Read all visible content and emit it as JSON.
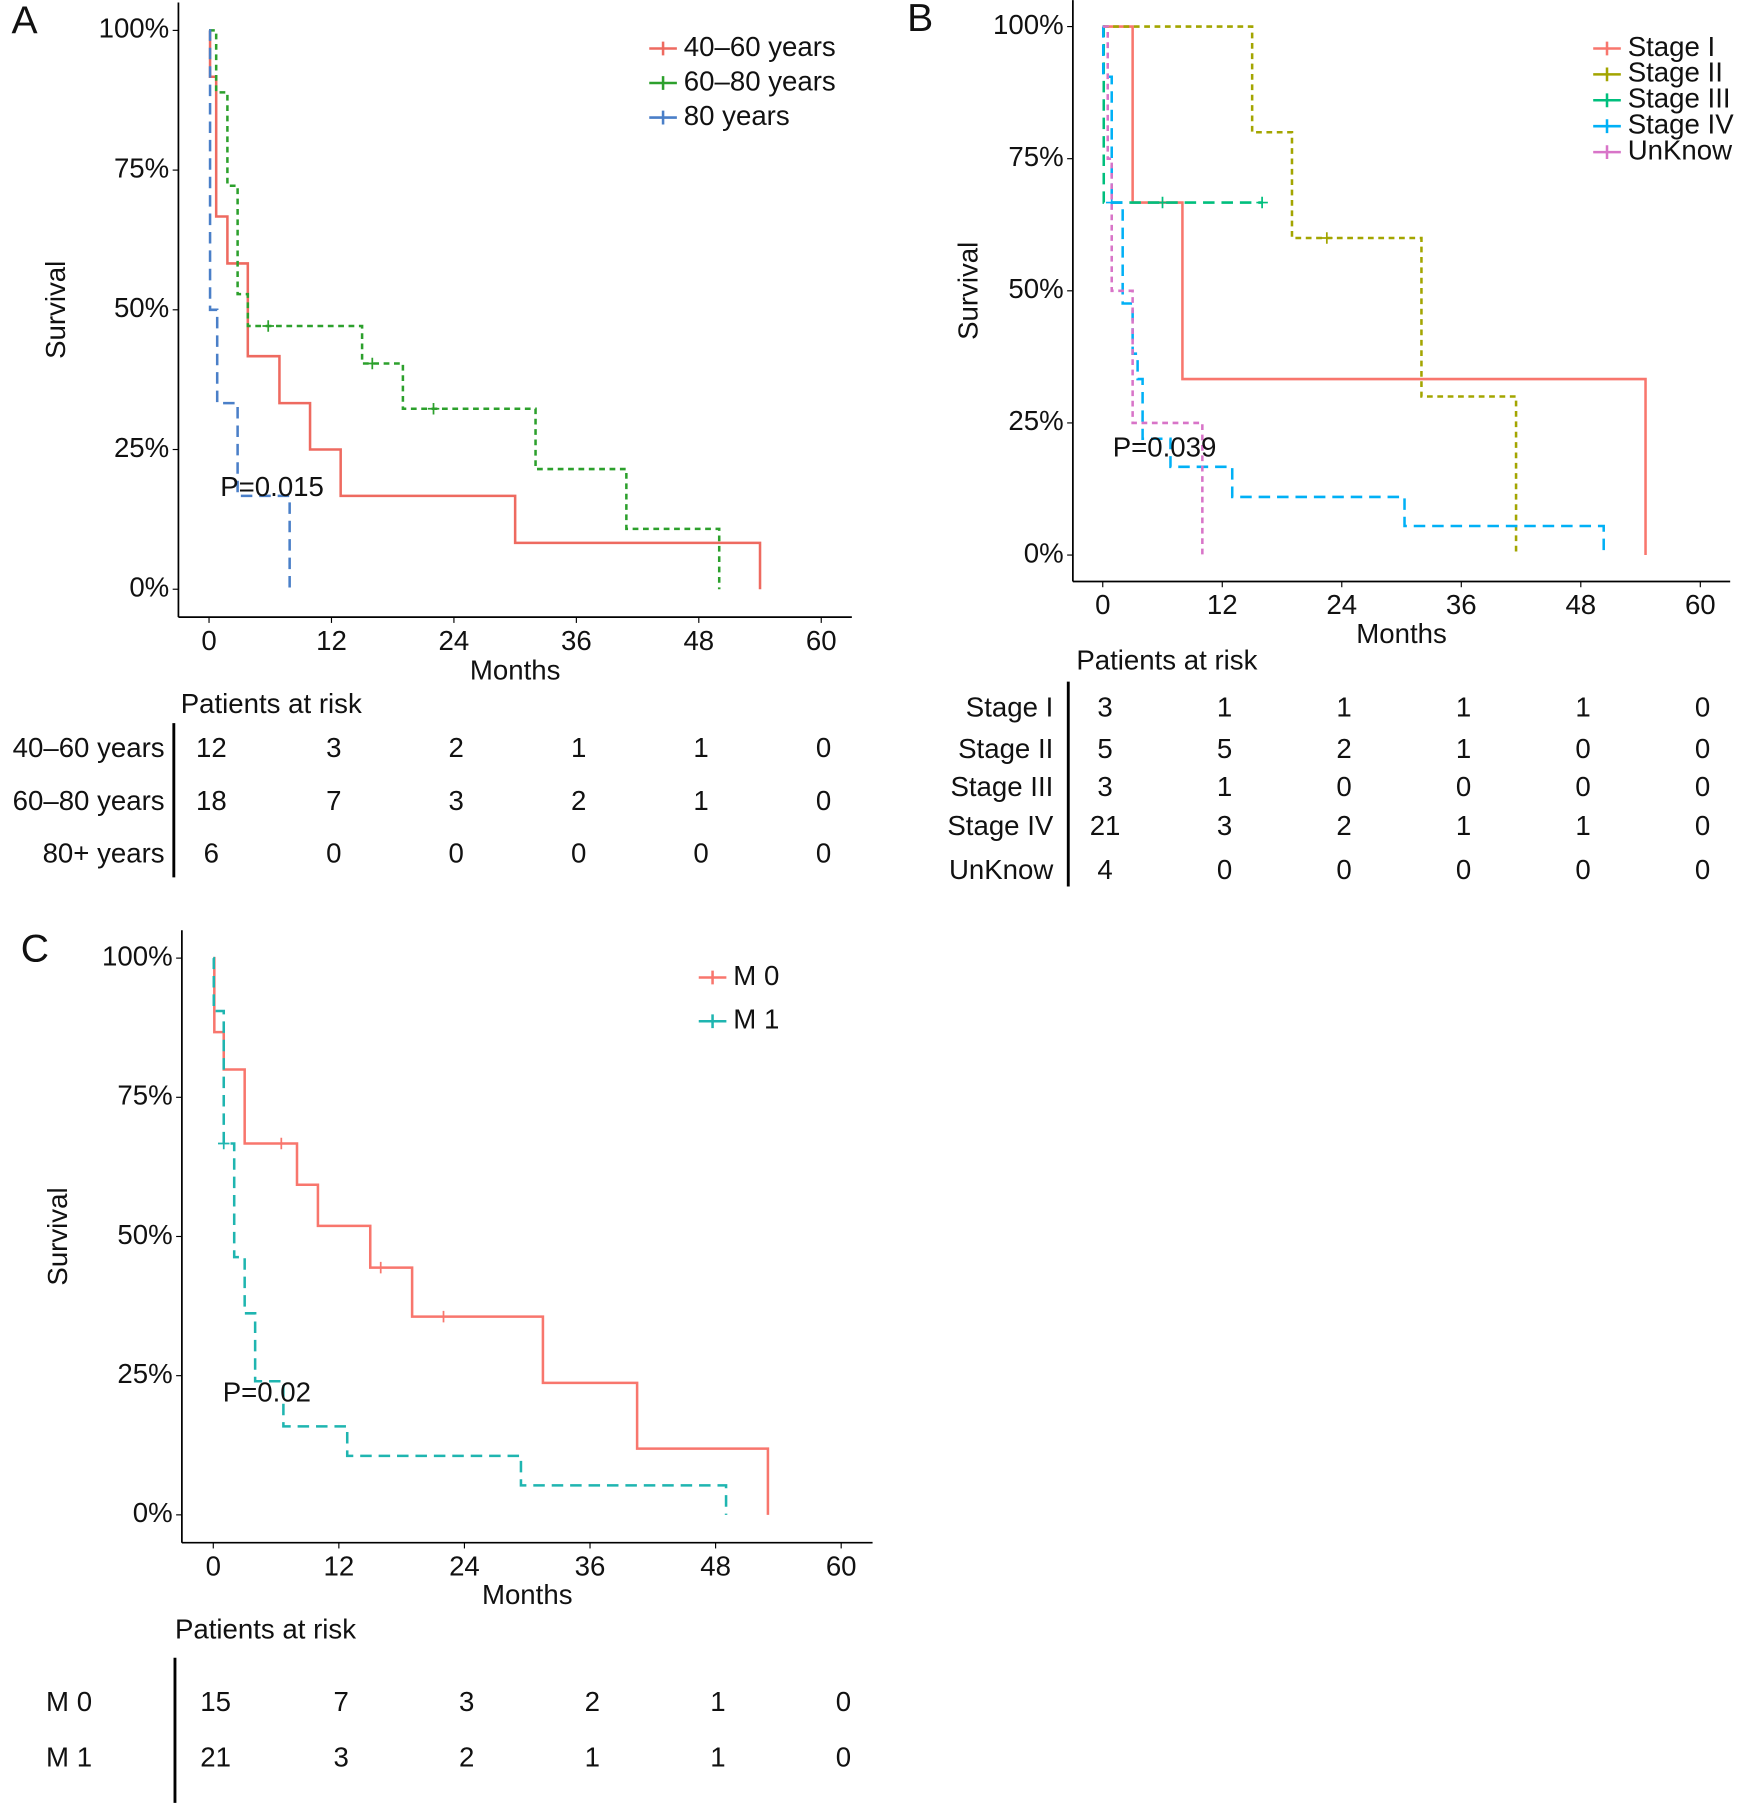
{
  "chart_data": [
    {
      "type": "line",
      "panel": "A",
      "y_label": "Survival",
      "x_label": "Months",
      "annotation": "P=0.015",
      "annotation_x": 1.1,
      "annotation_y": 18,
      "xlim": [
        -3,
        63
      ],
      "xticks": [
        0,
        12,
        24,
        36,
        48,
        60
      ],
      "ylim": [
        -5,
        105
      ],
      "yticks": [
        {
          "value": 0,
          "label": "0%"
        },
        {
          "value": 25,
          "label": "25%"
        },
        {
          "value": 50,
          "label": "50%"
        },
        {
          "value": 75,
          "label": "75%"
        },
        {
          "value": 100,
          "label": "100%"
        }
      ],
      "series": [
        {
          "name": "40–60 years",
          "color": "#ee6a60",
          "dash": "solid",
          "x": [
            0,
            0.1,
            0.7,
            1.8,
            3.8,
            6.9,
            9.9,
            12.9,
            30,
            54
          ],
          "values": [
            100,
            91.7,
            66.7,
            58.3,
            41.7,
            33.3,
            25,
            16.7,
            8.3,
            0
          ],
          "censored": []
        },
        {
          "name": "60–80 years",
          "color": "#2ca02c",
          "dash": "dotted",
          "x": [
            0,
            0.7,
            1.8,
            2.8,
            3.8,
            15,
            19,
            32,
            40.9,
            50
          ],
          "values": [
            100,
            88.9,
            72.2,
            52.8,
            47.1,
            40.4,
            32.3,
            21.5,
            10.8,
            0
          ],
          "censored": [
            5.8,
            16,
            22
          ]
        },
        {
          "name": "80 years",
          "color": "#4a7fc8",
          "dash": "dashed",
          "x": [
            0,
            0.1,
            0.8,
            2.8,
            7.9
          ],
          "values": [
            100,
            50,
            33.3,
            16.7,
            0
          ],
          "censored": []
        }
      ],
      "risk_table": {
        "title": "Patients at risk",
        "rows": [
          {
            "name": "40–60 years",
            "values": [
              12,
              3,
              2,
              1,
              1,
              0
            ]
          },
          {
            "name": "60–80 years",
            "values": [
              18,
              7,
              3,
              2,
              1,
              0
            ]
          },
          {
            "name": "80+ years",
            "values": [
              6,
              0,
              0,
              0,
              0,
              0
            ]
          }
        ]
      }
    },
    {
      "type": "line",
      "panel": "B",
      "y_label": "Survival",
      "x_label": "Months",
      "annotation": "P=0.039",
      "annotation_x": 1,
      "annotation_y": 20,
      "xlim": [
        -3,
        63
      ],
      "xticks": [
        0,
        12,
        24,
        36,
        48,
        60
      ],
      "ylim": [
        -5,
        105
      ],
      "yticks": [
        {
          "value": 0,
          "label": "0%"
        },
        {
          "value": 25,
          "label": "25%"
        },
        {
          "value": 50,
          "label": "50%"
        },
        {
          "value": 75,
          "label": "75%"
        },
        {
          "value": 100,
          "label": "100%"
        }
      ],
      "series": [
        {
          "name": "Stage I",
          "color": "#f8766d",
          "dash": "solid",
          "x": [
            0,
            3,
            8,
            54.5
          ],
          "values": [
            100,
            66.7,
            33.3,
            0
          ],
          "censored": []
        },
        {
          "name": "Stage II",
          "color": "#a3a500",
          "dash": "dotted",
          "x": [
            0,
            15,
            19,
            32,
            41.5
          ],
          "values": [
            100,
            80,
            60,
            30,
            0
          ],
          "censored": [
            22.5
          ]
        },
        {
          "name": "Stage III",
          "color": "#00bf7d",
          "dash": "dashed",
          "x": [
            0,
            0.1,
            16
          ],
          "values": [
            100,
            66.7,
            66.7
          ],
          "censored": [
            6,
            16
          ]
        },
        {
          "name": "Stage IV",
          "color": "#00b0f6",
          "dash": "dashed",
          "x": [
            0,
            0.05,
            0.9,
            2,
            3,
            3.5,
            4,
            6.8,
            13,
            30.3,
            50.3
          ],
          "values": [
            100,
            90.5,
            66.7,
            47.6,
            38.1,
            33.3,
            22,
            16.7,
            11,
            5.5,
            0
          ],
          "censored": [
            0.9
          ]
        },
        {
          "name": "UnKnow",
          "color": "#d874c8",
          "dash": "dotted",
          "x": [
            0,
            0.5,
            0.9,
            3,
            10
          ],
          "values": [
            100,
            75,
            50,
            25,
            0
          ],
          "censored": []
        }
      ],
      "risk_table": {
        "title": "Patients at risk",
        "rows": [
          {
            "name": "Stage I",
            "values": [
              3,
              1,
              1,
              1,
              1,
              0
            ]
          },
          {
            "name": "Stage II",
            "values": [
              5,
              5,
              2,
              1,
              0,
              0
            ]
          },
          {
            "name": "Stage III",
            "values": [
              3,
              1,
              0,
              0,
              0,
              0
            ]
          },
          {
            "name": "Stage IV",
            "values": [
              21,
              3,
              2,
              1,
              1,
              0
            ]
          },
          {
            "name": "UnKnow",
            "values": [
              4,
              0,
              0,
              0,
              0,
              0
            ]
          }
        ]
      }
    },
    {
      "type": "line",
      "panel": "C",
      "y_label": "Survival",
      "x_label": "Months",
      "annotation": "P=0.02",
      "annotation_x": 0.9,
      "annotation_y": 21.7,
      "xlim": [
        -3,
        63
      ],
      "xticks": [
        0,
        12,
        24,
        36,
        48,
        60
      ],
      "ylim": [
        -5,
        105
      ],
      "yticks": [
        {
          "value": 0,
          "label": "0%"
        },
        {
          "value": 25,
          "label": "25%"
        },
        {
          "value": 50,
          "label": "50%"
        },
        {
          "value": 75,
          "label": "75%"
        },
        {
          "value": 100,
          "label": "100%"
        }
      ],
      "series": [
        {
          "name": "M 0",
          "color": "#f8766d",
          "dash": "solid",
          "x": [
            0,
            0.1,
            1,
            3,
            8,
            10,
            15,
            19,
            31.5,
            40.5,
            53
          ],
          "values": [
            100,
            86.7,
            80,
            66.7,
            59.3,
            51.9,
            44.4,
            35.6,
            23.7,
            11.9,
            0
          ],
          "censored": [
            6.5,
            16,
            22
          ]
        },
        {
          "name": "M 1",
          "color": "#1fb5b0",
          "dash": "dashed",
          "x": [
            0,
            0.05,
            1,
            2,
            3,
            4,
            6.7,
            12.8,
            29.4,
            49
          ],
          "values": [
            100,
            90.5,
            66.7,
            46.3,
            36.2,
            24,
            15.9,
            10.6,
            5.3,
            0
          ],
          "censored": [
            1
          ]
        }
      ],
      "risk_table": {
        "title": "Patients at risk",
        "rows": [
          {
            "name": "M 0",
            "values": [
              15,
              7,
              3,
              2,
              1,
              0
            ]
          },
          {
            "name": "M 1",
            "values": [
              21,
              3,
              2,
              1,
              1,
              0
            ]
          }
        ]
      }
    }
  ]
}
